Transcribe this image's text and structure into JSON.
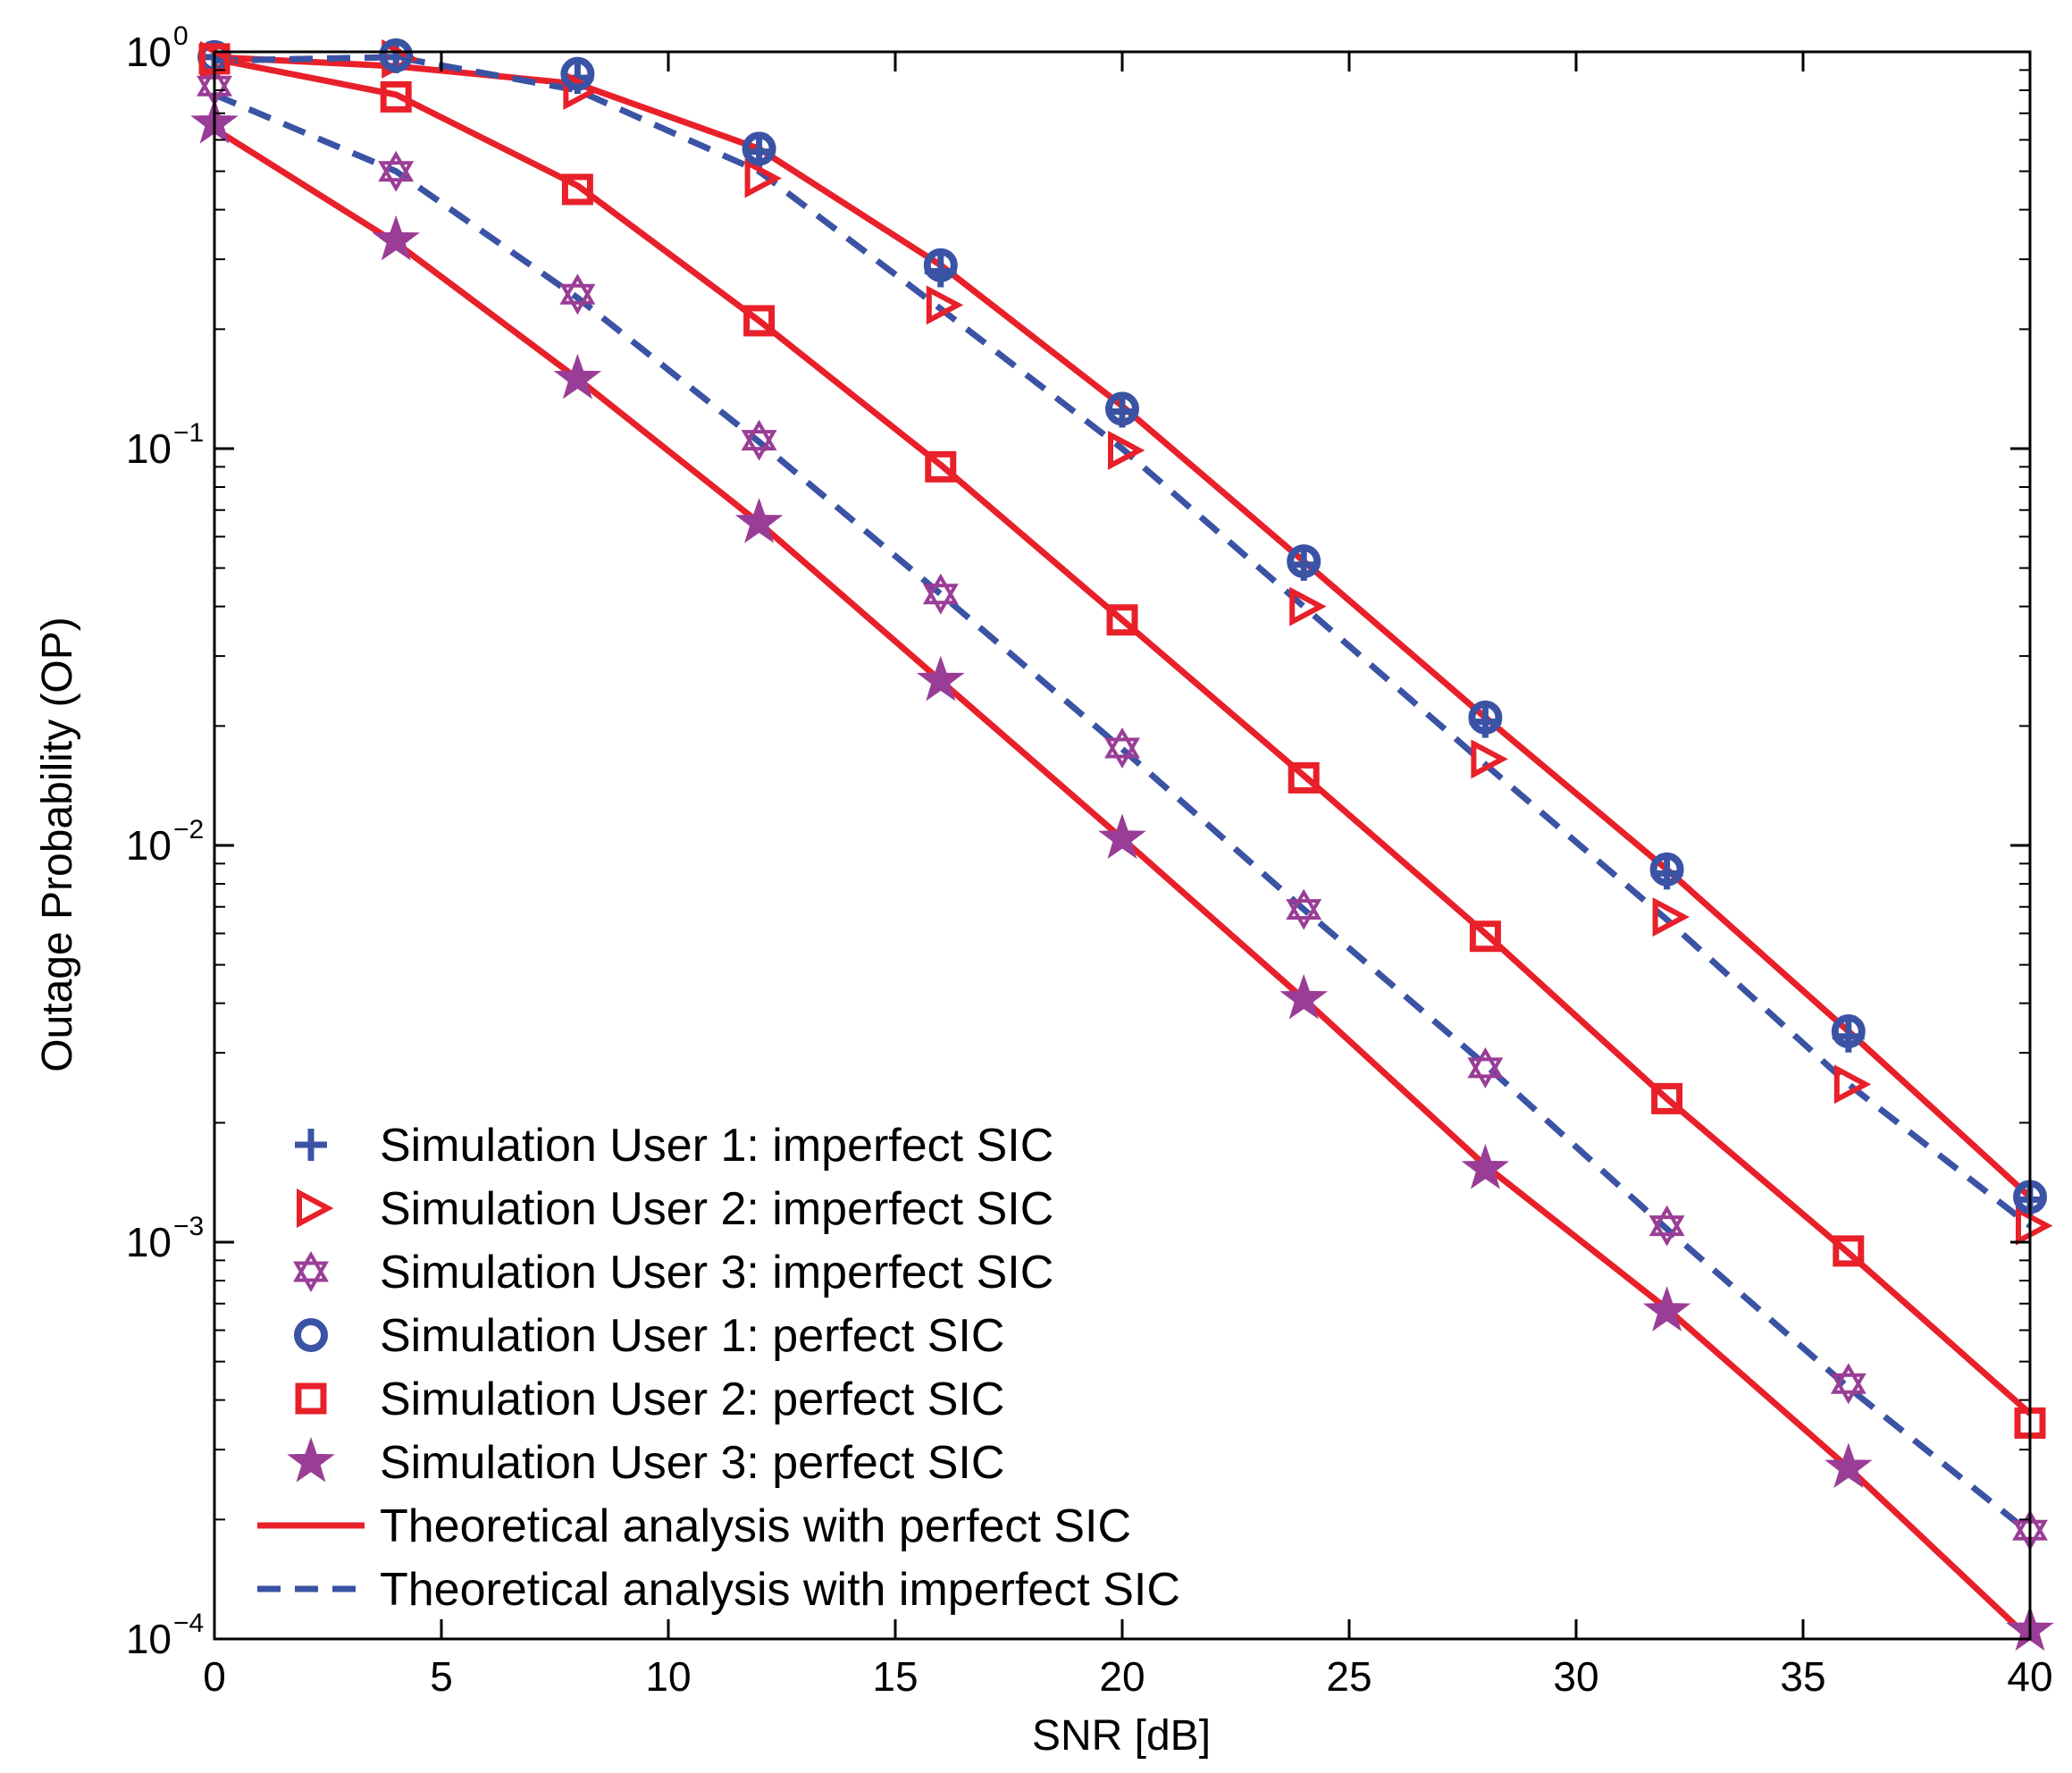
{
  "chart_data": {
    "type": "line",
    "xlabel": "SNR [dB]",
    "ylabel": "Outage Probability (OP)",
    "xlim": [
      0,
      40
    ],
    "ylim": [
      0.0001,
      1
    ],
    "yscale": "log",
    "grid": false,
    "legend_placement": "bottom-left",
    "x_ticks": [
      0,
      5,
      10,
      15,
      20,
      25,
      30,
      35,
      40
    ],
    "y_ticks": [
      {
        "value": 1,
        "base": "10",
        "exp": "0"
      },
      {
        "value": 0.1,
        "base": "10",
        "exp": "−1"
      },
      {
        "value": 0.01,
        "base": "10",
        "exp": "−2"
      },
      {
        "value": 0.001,
        "base": "10",
        "exp": "−3"
      },
      {
        "value": 0.0001,
        "base": "10",
        "exp": "−4"
      }
    ],
    "x": [
      0,
      4,
      8,
      12,
      16,
      20,
      24,
      28,
      32,
      36,
      40
    ],
    "theory_lines": [
      {
        "style": "solid",
        "color": "#e8202a",
        "values": [
          0.97,
          0.92,
          0.83,
          0.57,
          0.29,
          0.128,
          0.052,
          0.021,
          0.0087,
          0.0034,
          0.0013
        ]
      },
      {
        "style": "solid",
        "color": "#e8202a",
        "values": [
          0.96,
          0.78,
          0.46,
          0.21,
          0.091,
          0.037,
          0.015,
          0.006,
          0.0023,
          0.00094,
          0.00037
        ]
      },
      {
        "style": "solid",
        "color": "#e8202a",
        "values": [
          0.64,
          0.33,
          0.15,
          0.065,
          0.026,
          0.0104,
          0.0041,
          0.00156,
          0.00068,
          0.00027,
          0.0001
        ]
      },
      {
        "style": "dashed",
        "color": "#3a53a4",
        "values": [
          0.95,
          0.97,
          0.8,
          0.5,
          0.225,
          0.1,
          0.04,
          0.016,
          0.0065,
          0.0025,
          0.0011
        ]
      },
      {
        "style": "dashed",
        "color": "#3a53a4",
        "values": [
          0.78,
          0.5,
          0.24,
          0.104,
          0.043,
          0.0175,
          0.0069,
          0.0028,
          0.00108,
          0.00043,
          0.000185
        ]
      }
    ],
    "series": [
      {
        "name": "Simulation User 1: imperfect SIC",
        "marker": "plus",
        "color": "#3a53a4",
        "values": [
          0.97,
          0.97,
          0.86,
          0.56,
          0.28,
          0.124,
          0.051,
          0.0205,
          0.0085,
          0.0033,
          0.00128
        ]
      },
      {
        "name": "Simulation User 2: imperfect SIC",
        "marker": "triangle-right",
        "color": "#e8202a",
        "values": [
          0.95,
          0.96,
          0.8,
          0.48,
          0.23,
          0.099,
          0.04,
          0.0165,
          0.0066,
          0.0025,
          0.0011
        ]
      },
      {
        "name": "Simulation User 3: imperfect SIC",
        "marker": "hexagram",
        "color": "#9a3d96",
        "values": [
          0.82,
          0.5,
          0.245,
          0.105,
          0.043,
          0.0176,
          0.0069,
          0.00275,
          0.0011,
          0.00044,
          0.000188
        ]
      },
      {
        "name": "Simulation User 1: perfect SIC",
        "marker": "circle",
        "color": "#3a53a4",
        "values": [
          0.97,
          0.98,
          0.88,
          0.57,
          0.29,
          0.126,
          0.052,
          0.021,
          0.0087,
          0.0034,
          0.0013
        ]
      },
      {
        "name": "Simulation User 2: perfect SIC",
        "marker": "square",
        "color": "#e8202a",
        "values": [
          0.96,
          0.77,
          0.45,
          0.21,
          0.09,
          0.037,
          0.0148,
          0.0059,
          0.0023,
          0.00095,
          0.00035
        ]
      },
      {
        "name": "Simulation User 3: perfect SIC",
        "marker": "star",
        "color": "#9a3d96",
        "values": [
          0.66,
          0.335,
          0.15,
          0.065,
          0.026,
          0.0104,
          0.0041,
          0.00153,
          0.00067,
          0.00027,
          0.000105
        ]
      }
    ],
    "legend": [
      {
        "label": "Simulation User 1: imperfect SIC",
        "kind": "marker",
        "marker": "plus",
        "color": "#3a53a4"
      },
      {
        "label": "Simulation User 2: imperfect SIC",
        "kind": "marker",
        "marker": "triangle-right",
        "color": "#e8202a"
      },
      {
        "label": "Simulation User 3: imperfect SIC",
        "kind": "marker",
        "marker": "hexagram",
        "color": "#9a3d96"
      },
      {
        "label": "Simulation User 1: perfect SIC",
        "kind": "marker",
        "marker": "circle",
        "color": "#3a53a4"
      },
      {
        "label": "Simulation User 2: perfect SIC",
        "kind": "marker",
        "marker": "square",
        "color": "#e8202a"
      },
      {
        "label": "Simulation User 3: perfect SIC",
        "kind": "marker",
        "marker": "star",
        "color": "#9a3d96"
      },
      {
        "label": "Theoretical analysis with perfect SIC",
        "kind": "line",
        "style": "solid",
        "color": "#e8202a"
      },
      {
        "label": "Theoretical analysis with imperfect SIC",
        "kind": "line",
        "style": "dashed",
        "color": "#3a53a4"
      }
    ]
  }
}
